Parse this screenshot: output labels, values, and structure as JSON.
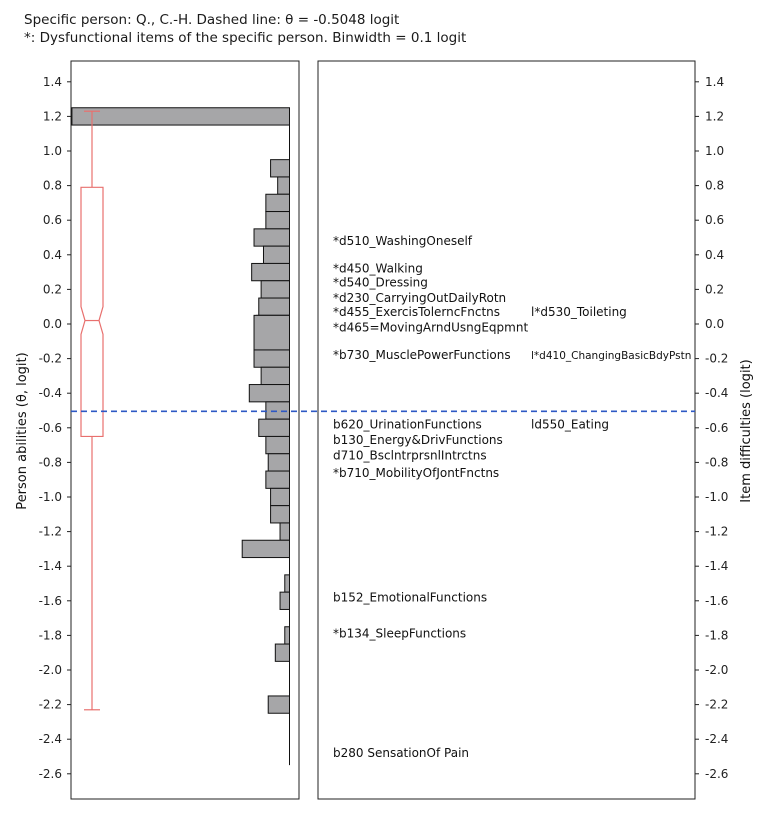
{
  "title_lines": [
    "Specific person: Q., C.-H. Dashed line: θ = -0.5048 logit",
    "*: Dysfunctional items of the specific person. Binwidth = 0.1 logit"
  ],
  "colors": {
    "histogram_fill": "#a6a6a8",
    "histogram_stroke": "#111111",
    "boxplot": "#e8706e",
    "dashed_line": "#2e58c4",
    "panel_border": "#222222"
  },
  "chart_data": {
    "type": "histogram-wright-map",
    "ylabel_left": "Person abilities (θ, logit)",
    "ylabel_right": "Item difficulties (logit)",
    "ylim": [
      -2.75,
      1.52
    ],
    "yticks": [
      1.4,
      1.2,
      1.0,
      0.8,
      0.6,
      0.4,
      0.2,
      0.0,
      -0.2,
      -0.4,
      -0.6,
      -0.8,
      -1.0,
      -1.2,
      -1.4,
      -1.6,
      -1.8,
      -2.0,
      -2.2,
      -2.4,
      -2.6
    ],
    "ytick_labels": [
      "1.4",
      "1.2",
      "1.0",
      "0.8",
      "0.6",
      "0.4",
      "0.2",
      "0.0",
      "-0.2",
      "-0.4",
      "-0.6",
      "-0.8",
      "-1.0",
      "-1.2",
      "-1.4",
      "-1.6",
      "-1.8",
      "-2.0",
      "-2.2",
      "-2.4",
      "-2.6"
    ],
    "dashed_line_theta": -0.5048,
    "person_histogram": {
      "binwidth": 0.1,
      "bins": [
        {
          "y0": 1.15,
          "y1": 1.25,
          "count": 92
        },
        {
          "y0": 0.85,
          "y1": 0.95,
          "count": 8
        },
        {
          "y0": 0.75,
          "y1": 0.85,
          "count": 5
        },
        {
          "y0": 0.65,
          "y1": 0.75,
          "count": 10
        },
        {
          "y0": 0.55,
          "y1": 0.65,
          "count": 10
        },
        {
          "y0": 0.45,
          "y1": 0.55,
          "count": 15
        },
        {
          "y0": 0.35,
          "y1": 0.45,
          "count": 11
        },
        {
          "y0": 0.25,
          "y1": 0.35,
          "count": 16
        },
        {
          "y0": 0.15,
          "y1": 0.25,
          "count": 12
        },
        {
          "y0": 0.05,
          "y1": 0.15,
          "count": 13
        },
        {
          "y0": -0.05,
          "y1": 0.05,
          "count": 14
        },
        {
          "y0": -0.15,
          "y1": 0.05,
          "count": 15
        },
        {
          "y0": -0.25,
          "y1": -0.15,
          "count": 15
        },
        {
          "y0": -0.35,
          "y1": -0.25,
          "count": 12
        },
        {
          "y0": -0.45,
          "y1": -0.35,
          "count": 17
        },
        {
          "y0": -0.55,
          "y1": -0.45,
          "count": 10
        },
        {
          "y0": -0.65,
          "y1": -0.55,
          "count": 13
        },
        {
          "y0": -0.75,
          "y1": -0.65,
          "count": 10
        },
        {
          "y0": -0.85,
          "y1": -0.75,
          "count": 9
        },
        {
          "y0": -0.95,
          "y1": -0.85,
          "count": 10
        },
        {
          "y0": -1.05,
          "y1": -0.95,
          "count": 8
        },
        {
          "y0": -1.15,
          "y1": -1.05,
          "count": 8
        },
        {
          "y0": -1.25,
          "y1": -1.15,
          "count": 4
        },
        {
          "y0": -1.35,
          "y1": -1.25,
          "count": 20
        },
        {
          "y0": -1.55,
          "y1": -1.45,
          "count": 2
        },
        {
          "y0": -1.65,
          "y1": -1.55,
          "count": 4
        },
        {
          "y0": -1.85,
          "y1": -1.75,
          "count": 2
        },
        {
          "y0": -1.95,
          "y1": -1.85,
          "count": 6
        },
        {
          "y0": -2.25,
          "y1": -2.15,
          "count": 9
        }
      ],
      "baseline_range": [
        -2.55,
        1.25
      ]
    },
    "boxplot": {
      "whisker_max": 1.23,
      "q3": 0.79,
      "notch_high": 0.1,
      "median": 0.02,
      "notch_low": -0.06,
      "q1": -0.65,
      "whisker_min": -2.23
    },
    "items": [
      {
        "label": "*d510_WashingOneself",
        "y": 0.48,
        "col": 1
      },
      {
        "label": "*d450_Walking",
        "y": 0.32,
        "col": 1
      },
      {
        "label": "*d540_Dressing",
        "y": 0.24,
        "col": 1
      },
      {
        "label": "*d230_CarryingOutDailyRotn",
        "y": 0.15,
        "col": 1
      },
      {
        "label": "*d455_ExercisTolerncFnctns",
        "y": 0.07,
        "col": 1
      },
      {
        "label": "*d465=MovingArndUsngEqpmnt",
        "y": -0.02,
        "col": 1
      },
      {
        "label": "*b730_MusclePowerFunctions",
        "y": -0.18,
        "col": 1
      },
      {
        "label": "b620_UrinationFunctions",
        "y": -0.58,
        "col": 1
      },
      {
        "label": "b130_Energy&DrivFunctions",
        "y": -0.67,
        "col": 1
      },
      {
        "label": "d710_BsclntrprsnlIntrctns",
        "y": -0.76,
        "col": 1
      },
      {
        "label": "*b710_MobilityOfJontFnctns",
        "y": -0.86,
        "col": 1
      },
      {
        "label": "b152_EmotionalFunctions",
        "y": -1.58,
        "col": 1
      },
      {
        "label": "*b134_SleepFunctions",
        "y": -1.79,
        "col": 1
      },
      {
        "label": "b280 SensationOf Pain",
        "y": -2.48,
        "col": 1
      },
      {
        "label": "l*d530_Toileting",
        "y": 0.07,
        "col": 2
      },
      {
        "label": "l*d410_ChangingBasicBdyPstn",
        "y": -0.18,
        "col": 2,
        "small": true
      },
      {
        "label": "ld550_Eating",
        "y": -0.58,
        "col": 2
      }
    ]
  }
}
